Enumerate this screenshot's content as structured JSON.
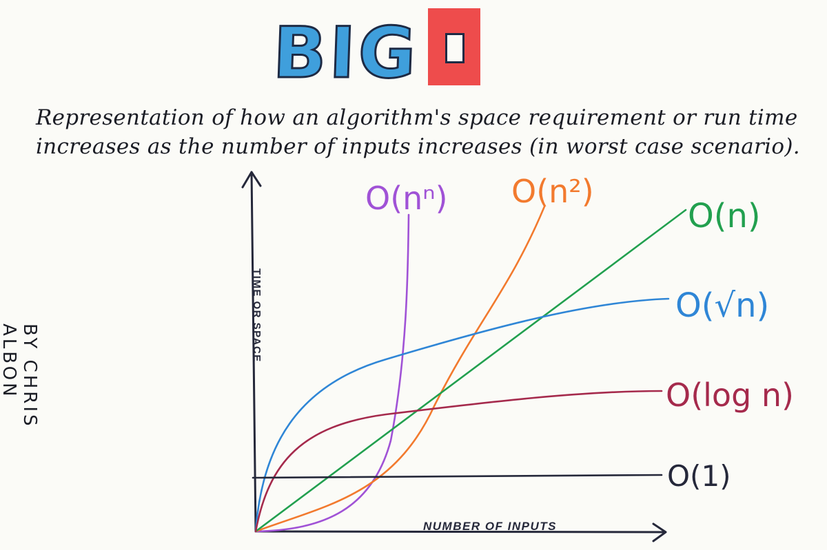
{
  "title": {
    "word1": "BIG",
    "word2": "O"
  },
  "description": {
    "line1": "Representation of how an algorithm's space requirement or run time",
    "line2": "increases as the number of inputs increases (in worst case scenario)."
  },
  "byline": "BY CHRIS ALBON",
  "axes": {
    "y_label": "TIME OR SPACE",
    "x_label": "NUMBER OF INPUTS"
  },
  "curves": [
    {
      "label": "O(nⁿ)",
      "color": "#a052d6"
    },
    {
      "label": "O(n²)",
      "color": "#f27a2e"
    },
    {
      "label": "O(n)",
      "color": "#22a04f"
    },
    {
      "label": "O(√n)",
      "color": "#2f86d6"
    },
    {
      "label": "O(log n)",
      "color": "#a52a4c"
    },
    {
      "label": "O(1)",
      "color": "#25283a"
    }
  ]
}
